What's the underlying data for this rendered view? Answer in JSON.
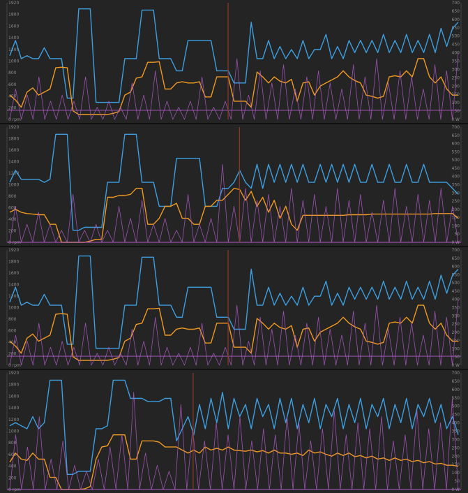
{
  "chart_data": [
    {
      "type": "line",
      "title": "",
      "xlabel": "",
      "ylabel": "",
      "ylim": [
        0,
        1920
      ],
      "y2lim": [
        0,
        700
      ],
      "left_ticks": [
        "1920",
        "1800",
        "1600",
        "1400",
        "1200",
        "1000",
        "800",
        "600",
        "400",
        "200",
        "0 rpm"
      ],
      "right_ticks": [
        "700",
        "650",
        "600",
        "550",
        "500",
        "450",
        "400",
        "350",
        "300",
        "250",
        "200",
        "150",
        "100",
        "50",
        "0 W"
      ],
      "grid": false,
      "marker_at": 0.487,
      "baseline": 150,
      "series": [
        {
          "color": "#3d9fe0",
          "values": [
            1050,
            1300,
            1000,
            1050,
            1000,
            1000,
            1180,
            1000,
            1000,
            1000,
            350,
            350,
            1820,
            1820,
            1820,
            280,
            280,
            280,
            280,
            280,
            1000,
            1000,
            1000,
            1800,
            1800,
            1800,
            1000,
            1000,
            1000,
            800,
            800,
            1300,
            1300,
            1300,
            1300,
            1300,
            800,
            800,
            800,
            600,
            600,
            600,
            1600,
            1000,
            1000,
            1300,
            1000,
            1200,
            1000,
            1150,
            1000,
            1300,
            1000,
            1150,
            1150,
            1400,
            1000,
            1200,
            1000,
            1300,
            1100,
            1300,
            1100,
            1300,
            1100,
            1400,
            1100,
            1300,
            1100,
            1400,
            1100,
            1300,
            1100,
            1400,
            1100,
            1500,
            1200,
            1500,
            1600
          ]
        },
        {
          "color": "#f09a20",
          "values": [
            400,
            320,
            200,
            450,
            520,
            400,
            450,
            500,
            850,
            860,
            850,
            140,
            80,
            80,
            80,
            80,
            80,
            80,
            100,
            130,
            400,
            450,
            680,
            700,
            940,
            940,
            950,
            500,
            500,
            600,
            620,
            600,
            600,
            620,
            370,
            370,
            700,
            700,
            700,
            300,
            300,
            300,
            200,
            780,
            700,
            600,
            700,
            630,
            600,
            660,
            300,
            600,
            620,
            400,
            550,
            600,
            650,
            700,
            800,
            700,
            640,
            600,
            400,
            380,
            350,
            380,
            700,
            720,
            700,
            800,
            700,
            1000,
            1000,
            700,
            600,
            700,
            500,
            400,
            400
          ]
        },
        {
          "color": "#b05cc8",
          "values": [
            0,
            500,
            0,
            400,
            0,
            700,
            0,
            300,
            0,
            400,
            0,
            300,
            0,
            700,
            0,
            200,
            0,
            300,
            0,
            200,
            0,
            600,
            0,
            400,
            0,
            800,
            0,
            300,
            0,
            200,
            0,
            300,
            0,
            700,
            0,
            200,
            0,
            300,
            0,
            1000,
            0,
            400,
            0,
            800,
            0,
            600,
            0,
            900,
            0,
            500,
            0,
            700,
            0,
            800,
            0,
            600,
            0,
            500,
            0,
            900,
            0,
            700,
            0,
            1000,
            0,
            600,
            0,
            800,
            0,
            700,
            0,
            500,
            0,
            900,
            0,
            800,
            0,
            1100
          ]
        }
      ]
    },
    {
      "type": "line",
      "title": "",
      "xlabel": "",
      "ylabel": "",
      "ylim": [
        0,
        1920
      ],
      "y2lim": [
        0,
        700
      ],
      "left_ticks": [
        "1920",
        "1800",
        "1600",
        "1400",
        "1200",
        "1000",
        "800",
        "600",
        "400",
        "200",
        "0 rpm"
      ],
      "right_ticks": [
        "700",
        "650",
        "600",
        "550",
        "500",
        "450",
        "400",
        "350",
        "300",
        "250",
        "200",
        "150",
        "100",
        "50",
        "0 W"
      ],
      "grid": false,
      "marker_at": 0.512,
      "baseline": 0,
      "series": [
        {
          "color": "#3d9fe0",
          "values": [
            1000,
            1200,
            1050,
            1050,
            1050,
            1050,
            1000,
            1050,
            1800,
            1800,
            1800,
            200,
            200,
            250,
            250,
            250,
            250,
            1000,
            1000,
            1000,
            1800,
            1800,
            1800,
            1000,
            1000,
            1000,
            600,
            600,
            600,
            1400,
            1400,
            1400,
            1400,
            1400,
            600,
            600,
            600,
            900,
            900,
            1000,
            1200,
            1000,
            900,
            1300,
            900,
            1300,
            1000,
            1300,
            1000,
            1300,
            1000,
            1300,
            1000,
            1000,
            1300,
            1000,
            1300,
            1000,
            1300,
            1000,
            1300,
            1000,
            1000,
            1300,
            1000,
            1000,
            1300,
            1000,
            1000,
            1300,
            1000,
            1000,
            1300,
            1000,
            1000,
            1000,
            1000,
            900,
            800
          ]
        },
        {
          "color": "#f09a20",
          "values": [
            500,
            550,
            500,
            480,
            470,
            460,
            460,
            300,
            300,
            0,
            0,
            0,
            0,
            0,
            20,
            50,
            50,
            750,
            750,
            780,
            780,
            800,
            900,
            900,
            300,
            300,
            400,
            600,
            600,
            650,
            400,
            400,
            300,
            300,
            600,
            600,
            700,
            700,
            800,
            900,
            880,
            700,
            850,
            600,
            750,
            500,
            700,
            400,
            600,
            300,
            200,
            450,
            450,
            450,
            450,
            450,
            450,
            450,
            450,
            460,
            460,
            460,
            460,
            470,
            470,
            470,
            470,
            470,
            470,
            470,
            470,
            470,
            470,
            470,
            480,
            480,
            480,
            480,
            400
          ]
        },
        {
          "color": "#b05cc8",
          "values": [
            0,
            600,
            0,
            300,
            0,
            500,
            0,
            300,
            0,
            200,
            0,
            800,
            0,
            200,
            0,
            300,
            0,
            200,
            0,
            600,
            0,
            400,
            0,
            700,
            0,
            300,
            0,
            400,
            0,
            200,
            0,
            800,
            0,
            300,
            0,
            400,
            0,
            1300,
            0,
            600,
            0,
            900,
            0,
            700,
            0,
            800,
            0,
            600,
            0,
            900,
            0,
            700,
            0,
            800,
            0,
            600,
            0,
            900,
            0,
            700,
            0,
            800,
            0,
            500,
            0,
            700,
            0,
            900,
            0,
            600,
            0,
            800,
            0,
            700,
            0,
            900,
            0,
            600,
            0
          ]
        }
      ]
    },
    {
      "type": "line",
      "title": "",
      "xlabel": "",
      "ylabel": "",
      "ylim": [
        0,
        1920
      ],
      "y2lim": [
        0,
        700
      ],
      "left_ticks": [
        "1920",
        "1800",
        "1600",
        "1400",
        "1200",
        "1000",
        "800",
        "600",
        "400",
        "200",
        "0 rpm"
      ],
      "right_ticks": [
        "700",
        "650",
        "600",
        "550",
        "500",
        "450",
        "400",
        "350",
        "300",
        "250",
        "200",
        "150",
        "100",
        "50",
        "0 W"
      ],
      "grid": false,
      "marker_at": 0.487,
      "baseline": 150,
      "series": [
        {
          "color": "#3d9fe0",
          "values": [
            1050,
            1300,
            1000,
            1050,
            1000,
            1000,
            1180,
            1000,
            1000,
            1000,
            350,
            350,
            1820,
            1820,
            1820,
            280,
            280,
            280,
            280,
            280,
            1000,
            1000,
            1000,
            1800,
            1800,
            1800,
            1000,
            1000,
            1000,
            800,
            800,
            1300,
            1300,
            1300,
            1300,
            1300,
            800,
            800,
            800,
            600,
            600,
            600,
            1600,
            1000,
            1000,
            1300,
            1000,
            1200,
            1000,
            1150,
            1000,
            1300,
            1000,
            1150,
            1150,
            1400,
            1000,
            1200,
            1000,
            1300,
            1100,
            1300,
            1100,
            1300,
            1100,
            1400,
            1100,
            1300,
            1100,
            1400,
            1100,
            1300,
            1100,
            1400,
            1100,
            1500,
            1200,
            1500,
            1600
          ]
        },
        {
          "color": "#f09a20",
          "values": [
            400,
            320,
            200,
            450,
            520,
            400,
            450,
            500,
            850,
            860,
            850,
            140,
            80,
            80,
            80,
            80,
            80,
            80,
            100,
            130,
            400,
            450,
            680,
            700,
            940,
            940,
            950,
            500,
            500,
            600,
            620,
            600,
            600,
            620,
            370,
            370,
            700,
            700,
            700,
            300,
            300,
            300,
            200,
            780,
            700,
            600,
            700,
            630,
            600,
            660,
            300,
            600,
            620,
            400,
            550,
            600,
            650,
            700,
            800,
            700,
            640,
            600,
            400,
            380,
            350,
            380,
            700,
            720,
            700,
            800,
            700,
            1000,
            1000,
            700,
            600,
            700,
            500,
            400,
            400
          ]
        },
        {
          "color": "#b05cc8",
          "values": [
            0,
            500,
            0,
            400,
            0,
            700,
            0,
            300,
            0,
            400,
            0,
            300,
            0,
            700,
            0,
            200,
            0,
            300,
            0,
            200,
            0,
            600,
            0,
            400,
            0,
            800,
            0,
            300,
            0,
            200,
            0,
            300,
            0,
            700,
            0,
            200,
            0,
            300,
            0,
            1000,
            0,
            400,
            0,
            800,
            0,
            600,
            0,
            900,
            0,
            500,
            0,
            700,
            0,
            800,
            0,
            600,
            0,
            500,
            0,
            900,
            0,
            700,
            0,
            1000,
            0,
            600,
            0,
            800,
            0,
            700,
            0,
            500,
            0,
            900,
            0,
            800,
            0,
            1100
          ]
        }
      ]
    },
    {
      "type": "line",
      "title": "",
      "xlabel": "",
      "ylabel": "",
      "ylim": [
        0,
        1920
      ],
      "y2lim": [
        0,
        700
      ],
      "left_ticks": [
        "1920",
        "1800",
        "1600",
        "1400",
        "1200",
        "1000",
        "800",
        "600",
        "400",
        "200",
        "0 rpm"
      ],
      "right_ticks": [
        "700",
        "650",
        "600",
        "550",
        "500",
        "450",
        "400",
        "350",
        "300",
        "250",
        "200",
        "150",
        "100",
        "50",
        "0 W"
      ],
      "grid": false,
      "marker_at": 0.41,
      "baseline": 0,
      "series": [
        {
          "color": "#3d9fe0",
          "values": [
            1050,
            1100,
            1050,
            1000,
            1200,
            1000,
            1100,
            1800,
            1800,
            1800,
            250,
            250,
            300,
            300,
            300,
            1000,
            1000,
            1050,
            1800,
            1800,
            1800,
            1500,
            1500,
            1500,
            1450,
            1450,
            1450,
            1500,
            1500,
            800,
            1000,
            1200,
            900,
            1400,
            1000,
            1500,
            1100,
            1600,
            1000,
            1500,
            1200,
            1400,
            1000,
            1500,
            1200,
            1400,
            1000,
            1500,
            1100,
            1500,
            1000,
            1400,
            1100,
            1500,
            1000,
            1400,
            1200,
            1500,
            1000,
            1400,
            1100,
            1500,
            1000,
            1400,
            1200,
            1500,
            1000,
            1400,
            1100,
            1500,
            1000,
            1400,
            1200,
            1500,
            1100,
            1400,
            1000,
            1200,
            900
          ]
        },
        {
          "color": "#f09a20",
          "values": [
            450,
            600,
            500,
            480,
            600,
            500,
            500,
            200,
            200,
            0,
            0,
            0,
            0,
            10,
            50,
            500,
            700,
            720,
            900,
            900,
            900,
            500,
            500,
            800,
            800,
            800,
            780,
            700,
            700,
            700,
            650,
            600,
            650,
            600,
            700,
            650,
            680,
            650,
            700,
            650,
            640,
            630,
            650,
            620,
            640,
            600,
            650,
            600,
            600,
            580,
            600,
            560,
            650,
            600,
            620,
            580,
            550,
            600,
            560,
            600,
            540,
            560,
            520,
            550,
            500,
            520,
            480,
            520,
            480,
            500,
            460,
            480,
            440,
            460,
            420,
            430,
            400,
            400,
            380
          ]
        },
        {
          "color": "#b05cc8",
          "values": [
            0,
            900,
            0,
            700,
            0,
            1200,
            0,
            500,
            0,
            800,
            0,
            400,
            0,
            300,
            0,
            500,
            0,
            700,
            0,
            900,
            0,
            1600,
            0,
            600,
            0,
            400,
            0,
            300,
            0,
            1400,
            0,
            1000,
            0,
            800,
            0,
            1100,
            0,
            900,
            0,
            1200,
            0,
            800,
            0,
            1000,
            0,
            900,
            0,
            1200,
            0,
            1100,
            0,
            800,
            0,
            1000,
            0,
            1300,
            0,
            900,
            0,
            1100,
            0,
            1000,
            0,
            1200,
            0,
            800,
            0,
            900,
            0,
            1300,
            0,
            1000,
            0,
            1100,
            0,
            1500,
            0
          ]
        }
      ]
    }
  ]
}
